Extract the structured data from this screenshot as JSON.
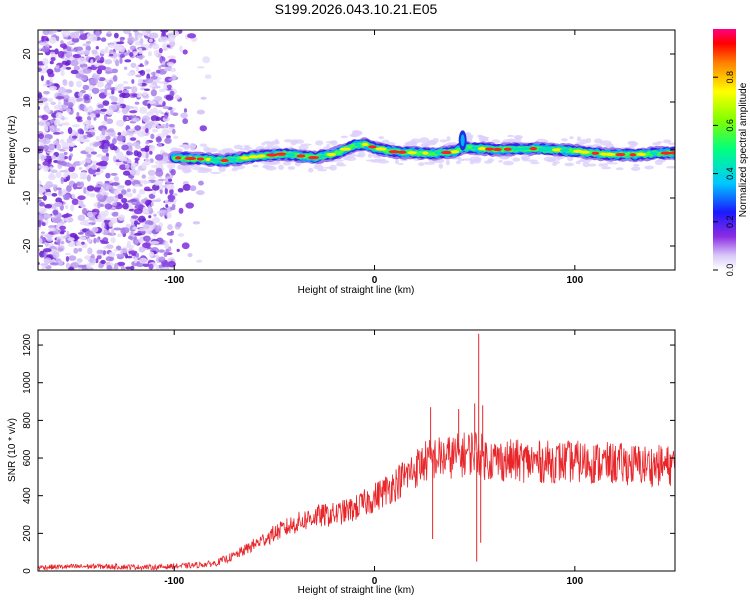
{
  "title": "S199.2026.043.10.21.E05",
  "colors": {
    "snr_line": "#e8262a",
    "spectral_low": "#8a2be2",
    "spectral_mid": "#00ff80",
    "spectral_high": "#ff0000"
  },
  "chart_data": [
    {
      "id": "spectrogram",
      "type": "heatmap",
      "xlabel": "Height of straight line (km)",
      "ylabel": "Frequency (Hz)",
      "xlim": [
        -168,
        150
      ],
      "ylim": [
        -25,
        25
      ],
      "xticks": [
        -100,
        0,
        100
      ],
      "xtick_labels": [
        "-100",
        "0",
        "100"
      ],
      "yticks": [
        -20,
        -10,
        0,
        10,
        20
      ],
      "ytick_labels": [
        "-20",
        "-10",
        "0",
        "10",
        "20"
      ],
      "colorbar": {
        "label": "Normalized spectral amplitude",
        "range": [
          0,
          1
        ],
        "ticks": [
          0,
          0.2,
          0.4,
          0.6,
          0.8
        ],
        "tick_labels": [
          "0.0",
          "0.2",
          "0.4",
          "0.6",
          "0.8"
        ],
        "colormap": "rainbow"
      },
      "signal_track": {
        "start_km": -100,
        "end_km": 150,
        "freq_hz": [
          [
            -100,
            -1.6
          ],
          [
            -90,
            -1.8
          ],
          [
            -75,
            -2.2
          ],
          [
            -60,
            -1.4
          ],
          [
            -45,
            -0.8
          ],
          [
            -30,
            -1.6
          ],
          [
            -20,
            -0.8
          ],
          [
            -10,
            1.0
          ],
          [
            -5,
            1.2
          ],
          [
            0,
            0.5
          ],
          [
            10,
            -0.4
          ],
          [
            20,
            -0.6
          ],
          [
            30,
            -0.7
          ],
          [
            40,
            -0.4
          ],
          [
            44,
            0.6
          ],
          [
            50,
            0.4
          ],
          [
            60,
            0.1
          ],
          [
            80,
            0.3
          ],
          [
            100,
            -0.2
          ],
          [
            115,
            -0.9
          ],
          [
            130,
            -1.0
          ],
          [
            140,
            -0.7
          ],
          [
            150,
            -0.6
          ]
        ],
        "peak_km": 44
      },
      "noise_region_km": [
        -168,
        -83
      ]
    },
    {
      "id": "snr",
      "type": "line",
      "xlabel": "Height of straight line (km)",
      "ylabel": "SNR (10 * v/v)",
      "xlim": [
        -168,
        150
      ],
      "ylim": [
        0,
        1280
      ],
      "xticks": [
        -100,
        0,
        100
      ],
      "xtick_labels": [
        "-100",
        "0",
        "100"
      ],
      "yticks": [
        0,
        200,
        400,
        600,
        800,
        1000,
        1200
      ],
      "ytick_labels": [
        "0",
        "200",
        "400",
        "600",
        "800",
        "1000",
        "1200"
      ],
      "series": [
        {
          "name": "SNR",
          "x": [
            -168,
            -140,
            -110,
            -90,
            -80,
            -70,
            -60,
            -50,
            -40,
            -30,
            -20,
            -10,
            0,
            10,
            20,
            25,
            30,
            35,
            40,
            45,
            50,
            55,
            60,
            80,
            100,
            120,
            140,
            150
          ],
          "y": [
            20,
            25,
            20,
            30,
            40,
            80,
            140,
            200,
            250,
            290,
            300,
            330,
            390,
            460,
            540,
            580,
            600,
            600,
            610,
            620,
            640,
            600,
            590,
            580,
            580,
            570,
            560,
            560
          ]
        }
      ],
      "spikes": [
        {
          "x": 28,
          "y": 870
        },
        {
          "x": 29,
          "y": 170
        },
        {
          "x": 42,
          "y": 860
        },
        {
          "x": 50,
          "y": 890
        },
        {
          "x": 51,
          "y": 50
        },
        {
          "x": 52,
          "y": 1260
        },
        {
          "x": 53,
          "y": 150
        },
        {
          "x": 54,
          "y": 880
        }
      ]
    }
  ]
}
